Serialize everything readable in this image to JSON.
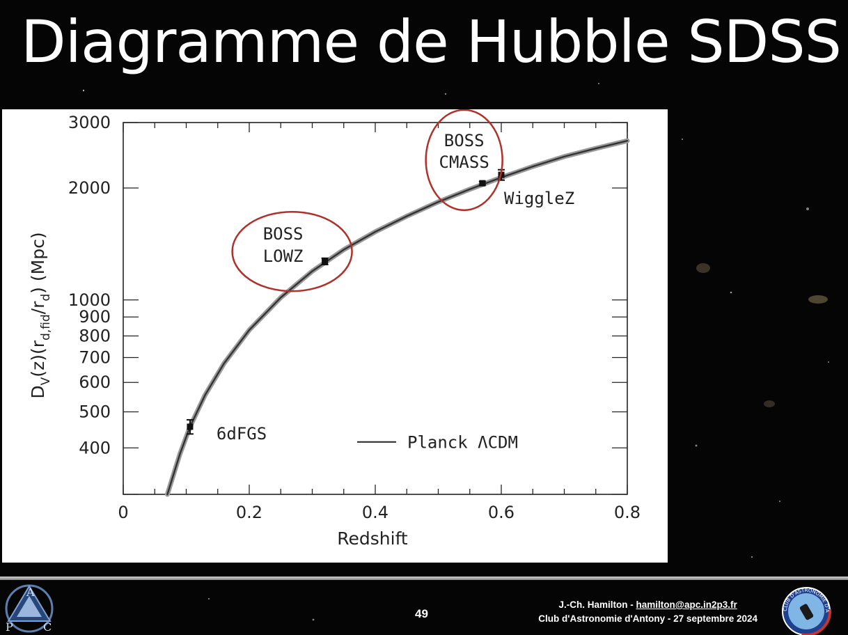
{
  "slide": {
    "title": "Diagramme de Hubble SDSS",
    "page_number": "49",
    "author": "J.-Ch. Hamilton - ",
    "email": "hamilton@apc.in2p3.fr",
    "event": "Club d'Astronomie d'Antony - 27 septembre 2024",
    "logo_left_letters": [
      "A",
      "P",
      "C"
    ],
    "logo_right_text": "CLUB D'ASTRONOMIE D'ANTONY"
  },
  "chart_data": {
    "type": "scatter",
    "xlabel": "Redshift",
    "ylabel_main": "D",
    "ylabel_sub_v": "V",
    "ylabel_mid": "(z)(r",
    "ylabel_sub_fid": "d,fid",
    "ylabel_slash": "/r",
    "ylabel_sub_d": "d",
    "ylabel_unit": ")  (Mpc)",
    "xlim": [
      0,
      0.8
    ],
    "ylim": [
      300,
      3000
    ],
    "yscale": "log",
    "x_ticks": [
      "0",
      "0.2",
      "0.4",
      "0.6",
      "0.8"
    ],
    "x_tick_values": [
      0,
      0.2,
      0.4,
      0.6,
      0.8
    ],
    "y_ticks": [
      "400",
      "500",
      "600",
      "700",
      "800",
      "900",
      "1000",
      "2000",
      "3000"
    ],
    "y_tick_values": [
      400,
      500,
      600,
      700,
      800,
      900,
      1000,
      2000,
      3000
    ],
    "points": [
      {
        "label": "6dFGS",
        "x": 0.106,
        "y": 456,
        "err": 20
      },
      {
        "label": "",
        "x": 0.32,
        "y": 1270,
        "err": 25
      },
      {
        "label": "",
        "x": 0.57,
        "y": 2060,
        "err": 22
      },
      {
        "label": "WiggleZ",
        "x": 0.6,
        "y": 2170,
        "err": 70
      }
    ],
    "model_curve": {
      "name": "Planck ΛCDM",
      "x": [
        0.07,
        0.09,
        0.106,
        0.13,
        0.16,
        0.2,
        0.25,
        0.3,
        0.35,
        0.4,
        0.45,
        0.5,
        0.55,
        0.6,
        0.65,
        0.7,
        0.75,
        0.8
      ],
      "y": [
        300,
        385,
        456,
        555,
        675,
        830,
        1015,
        1195,
        1365,
        1525,
        1680,
        1835,
        1985,
        2135,
        2285,
        2430,
        2555,
        2680
      ]
    },
    "annotations": [
      {
        "line1": "BOSS",
        "line2": "LOWZ",
        "x": 0.32,
        "y": 1440
      },
      {
        "line1": "BOSS",
        "line2": "CMASS",
        "x": 0.53,
        "y": 2420
      }
    ],
    "legend": {
      "label": "Planck ΛCDM",
      "position": "bottom-right"
    },
    "highlight_color": "#b0302a",
    "curve_color": "#333333"
  }
}
